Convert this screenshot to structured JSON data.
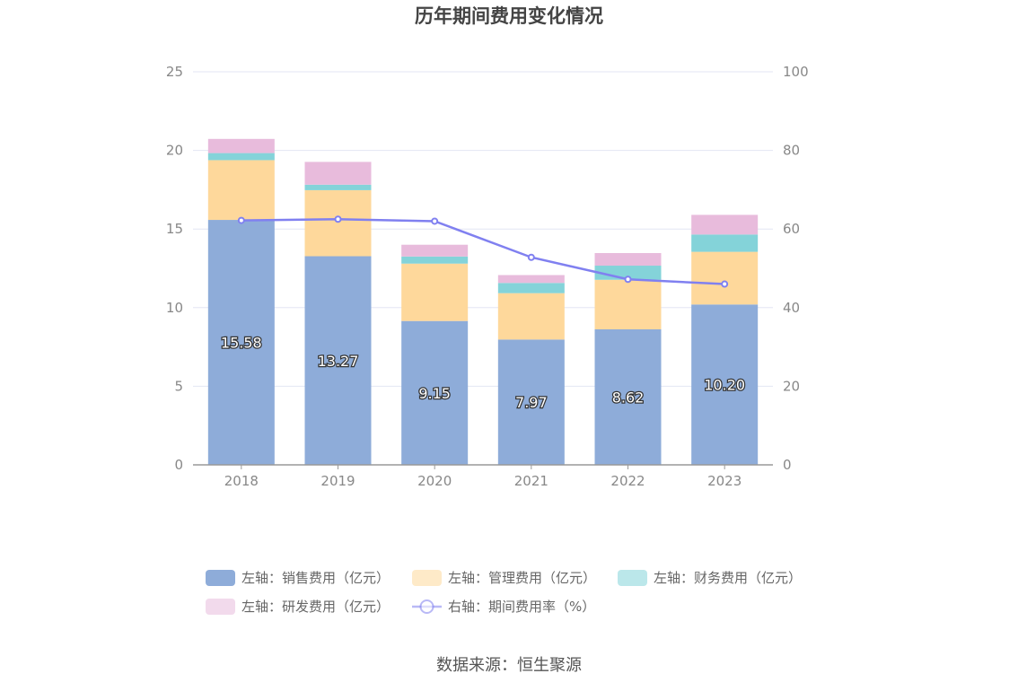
{
  "chart_data": {
    "type": "bar",
    "title": "历年期间费用变化情况",
    "categories": [
      "2018",
      "2019",
      "2020",
      "2021",
      "2022",
      "2023"
    ],
    "stacked": true,
    "left_axis": {
      "min": 0,
      "max": 25,
      "ticks": [
        "0",
        "5",
        "10",
        "15",
        "20",
        "25"
      ]
    },
    "right_axis": {
      "min": 0,
      "max": 100,
      "ticks": [
        "0",
        "20",
        "40",
        "60",
        "80",
        "100"
      ]
    },
    "grid": true,
    "legend_position": "bottom",
    "series": [
      {
        "name": "左轴：销售费用（亿元）",
        "type": "bar",
        "axis": "left",
        "color": "#8eacd9",
        "values": [
          15.58,
          13.27,
          9.15,
          7.97,
          8.62,
          10.2
        ],
        "labels": [
          "15.58",
          "13.27",
          "9.15",
          "7.97",
          "8.62",
          "10.20"
        ]
      },
      {
        "name": "左轴：管理费用（亿元）",
        "type": "bar",
        "axis": "left",
        "color": "#fed89b",
        "values": [
          3.8,
          4.2,
          3.65,
          2.95,
          3.15,
          3.35
        ]
      },
      {
        "name": "左轴：财务费用（亿元）",
        "type": "bar",
        "axis": "left",
        "color": "#84d3d9",
        "values": [
          0.45,
          0.35,
          0.45,
          0.65,
          0.9,
          1.1
        ]
      },
      {
        "name": "左轴：研发费用（亿元）",
        "type": "bar",
        "axis": "left",
        "color": "#e8bbdc",
        "values": [
          0.9,
          1.45,
          0.75,
          0.5,
          0.8,
          1.25
        ]
      },
      {
        "name": "右轴：期间费用率（%）",
        "type": "line",
        "axis": "right",
        "color": "#8080f0",
        "values": [
          62.2,
          62.5,
          62.0,
          52.8,
          47.2,
          46.0
        ]
      }
    ]
  },
  "footer": {
    "source": "数据来源：恒生聚源"
  }
}
